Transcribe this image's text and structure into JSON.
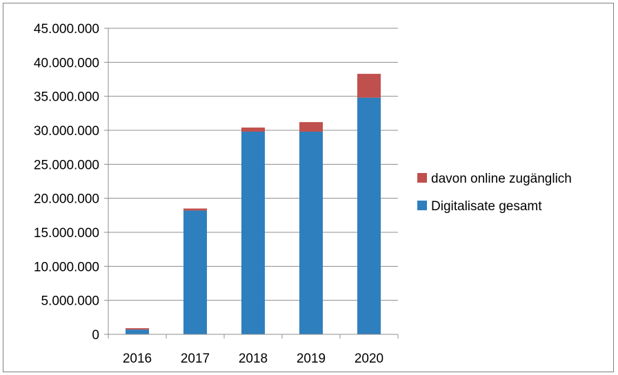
{
  "chart_data": {
    "type": "bar",
    "stacked": true,
    "categories": [
      "2016",
      "2017",
      "2018",
      "2019",
      "2020"
    ],
    "series": [
      {
        "name": "Digitalisate gesamt",
        "color": "#2e7fbe",
        "values": [
          700000,
          18200000,
          29800000,
          29800000,
          34800000
        ]
      },
      {
        "name": "davon online zugänglich",
        "color": "#c0504d",
        "values": [
          200000,
          300000,
          600000,
          1400000,
          3500000
        ]
      }
    ],
    "ylim": [
      0,
      45000000
    ],
    "yticks": [
      0,
      5000000,
      10000000,
      15000000,
      20000000,
      25000000,
      30000000,
      35000000,
      40000000,
      45000000
    ],
    "ytick_labels": [
      "0",
      "5.000.000",
      "10.000.000",
      "15.000.000",
      "20.000.000",
      "25.000.000",
      "30.000.000",
      "35.000.000",
      "40.000.000",
      "45.000.000"
    ],
    "grid": true,
    "legend_position": "right",
    "legend_order": [
      "davon online zugänglich",
      "Digitalisate gesamt"
    ],
    "title": "",
    "xlabel": "",
    "ylabel": ""
  }
}
